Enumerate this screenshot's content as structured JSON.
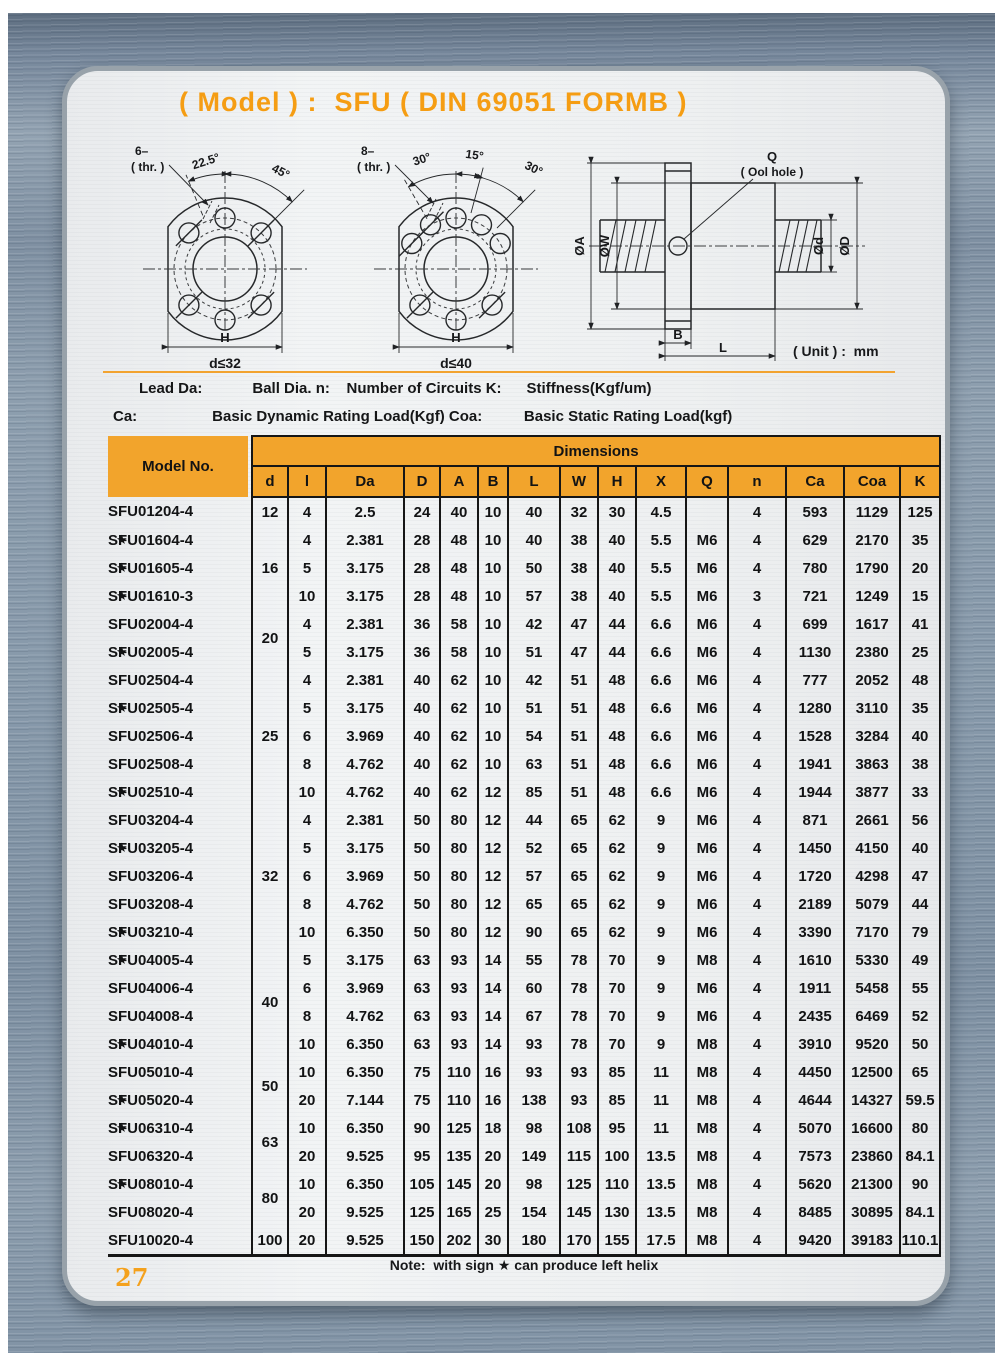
{
  "page": {
    "title": "( Model ) :  SFU ( DIN 69051 FORMB )",
    "unit": "( Unit ) :  mm",
    "note": "Note:  with sign ★ can produce left helix",
    "page_number": "27",
    "star_symbol": "★"
  },
  "colors": {
    "accent_orange": "#F2A42C",
    "title_orange": "#F59D13",
    "table_line": "#161616",
    "metal_background": "#8799AA",
    "card_background": "#EEF0F1"
  },
  "legend": {
    "line1": "Lead Da:            Ball Dia. n:    Number of Circuits K:      Stiffness(Kgf/um)",
    "line2": "Ca:                  Basic Dynamic Rating Load(Kgf) Coa:          Basic Static Rating Load(kgf)"
  },
  "drawings": {
    "flange6": {
      "count": "6–",
      "thr": "( thr. )",
      "angle1": "22.5°",
      "angle2": "45°",
      "h": "H",
      "d": "d≤32"
    },
    "flange8": {
      "count": "8–",
      "thr": "( thr. )",
      "angle1": "30°",
      "angle2": "15°",
      "angle3": "30°",
      "h": "H",
      "d": "d≤40"
    },
    "side": {
      "q": "Q",
      "oil": "( Ool hole )",
      "dia_a": "ØA",
      "dia_w": "ØW",
      "dia_d": "Ød",
      "dia_D": "ØD",
      "b": "B",
      "l": "L"
    }
  },
  "table": {
    "model_header": "Model No.",
    "dimensions_header": "Dimensions",
    "columns": [
      "d",
      "l",
      "Da",
      "D",
      "A",
      "B",
      "L",
      "W",
      "H",
      "X",
      "Q",
      "n",
      "Ca",
      "Coa",
      "K"
    ],
    "d_groups": [
      {
        "d": "12",
        "span": 1
      },
      {
        "d": "16",
        "span": 3
      },
      {
        "d": "20",
        "span": 2
      },
      {
        "d": "25",
        "span": 5
      },
      {
        "d": "32",
        "span": 5
      },
      {
        "d": "40",
        "span": 4
      },
      {
        "d": "50",
        "span": 2
      },
      {
        "d": "63",
        "span": 2
      },
      {
        "d": "80",
        "span": 2
      },
      {
        "d": "100",
        "span": 1
      }
    ],
    "rows": [
      {
        "star": false,
        "model": "SFU01204-4",
        "values": [
          "4",
          "2.5",
          "24",
          "40",
          "10",
          "40",
          "32",
          "30",
          "4.5",
          "",
          "4",
          "593",
          "1129",
          "125"
        ]
      },
      {
        "star": true,
        "model": "SFU01604-4",
        "values": [
          "4",
          "2.381",
          "28",
          "48",
          "10",
          "40",
          "38",
          "40",
          "5.5",
          "M6",
          "4",
          "629",
          "2170",
          "35"
        ]
      },
      {
        "star": true,
        "model": "SFU01605-4",
        "values": [
          "5",
          "3.175",
          "28",
          "48",
          "10",
          "50",
          "38",
          "40",
          "5.5",
          "M6",
          "4",
          "780",
          "1790",
          "20"
        ]
      },
      {
        "star": true,
        "model": "SFU01610-3",
        "values": [
          "10",
          "3.175",
          "28",
          "48",
          "10",
          "57",
          "38",
          "40",
          "5.5",
          "M6",
          "3",
          "721",
          "1249",
          "15"
        ]
      },
      {
        "star": false,
        "model": "SFU02004-4",
        "values": [
          "4",
          "2.381",
          "36",
          "58",
          "10",
          "42",
          "47",
          "44",
          "6.6",
          "M6",
          "4",
          "699",
          "1617",
          "41"
        ]
      },
      {
        "star": true,
        "model": "SFU02005-4",
        "values": [
          "5",
          "3.175",
          "36",
          "58",
          "10",
          "51",
          "47",
          "44",
          "6.6",
          "M6",
          "4",
          "1130",
          "2380",
          "25"
        ]
      },
      {
        "star": false,
        "model": "SFU02504-4",
        "values": [
          "4",
          "2.381",
          "40",
          "62",
          "10",
          "42",
          "51",
          "48",
          "6.6",
          "M6",
          "4",
          "777",
          "2052",
          "48"
        ]
      },
      {
        "star": true,
        "model": "SFU02505-4",
        "values": [
          "5",
          "3.175",
          "40",
          "62",
          "10",
          "51",
          "51",
          "48",
          "6.6",
          "M6",
          "4",
          "1280",
          "3110",
          "35"
        ]
      },
      {
        "star": false,
        "model": "SFU02506-4",
        "values": [
          "6",
          "3.969",
          "40",
          "62",
          "10",
          "54",
          "51",
          "48",
          "6.6",
          "M6",
          "4",
          "1528",
          "3284",
          "40"
        ]
      },
      {
        "star": false,
        "model": "SFU02508-4",
        "values": [
          "8",
          "4.762",
          "40",
          "62",
          "10",
          "63",
          "51",
          "48",
          "6.6",
          "M6",
          "4",
          "1941",
          "3863",
          "38"
        ]
      },
      {
        "star": true,
        "model": "SFU02510-4",
        "values": [
          "10",
          "4.762",
          "40",
          "62",
          "12",
          "85",
          "51",
          "48",
          "6.6",
          "M6",
          "4",
          "1944",
          "3877",
          "33"
        ]
      },
      {
        "star": false,
        "model": "SFU03204-4",
        "values": [
          "4",
          "2.381",
          "50",
          "80",
          "12",
          "44",
          "65",
          "62",
          "9",
          "M6",
          "4",
          "871",
          "2661",
          "56"
        ]
      },
      {
        "star": true,
        "model": "SFU03205-4",
        "values": [
          "5",
          "3.175",
          "50",
          "80",
          "12",
          "52",
          "65",
          "62",
          "9",
          "M6",
          "4",
          "1450",
          "4150",
          "40"
        ]
      },
      {
        "star": false,
        "model": "SFU03206-4",
        "values": [
          "6",
          "3.969",
          "50",
          "80",
          "12",
          "57",
          "65",
          "62",
          "9",
          "M6",
          "4",
          "1720",
          "4298",
          "47"
        ]
      },
      {
        "star": false,
        "model": "SFU03208-4",
        "values": [
          "8",
          "4.762",
          "50",
          "80",
          "12",
          "65",
          "65",
          "62",
          "9",
          "M6",
          "4",
          "2189",
          "5079",
          "44"
        ]
      },
      {
        "star": true,
        "model": "SFU03210-4",
        "values": [
          "10",
          "6.350",
          "50",
          "80",
          "12",
          "90",
          "65",
          "62",
          "9",
          "M6",
          "4",
          "3390",
          "7170",
          "79"
        ]
      },
      {
        "star": true,
        "model": "SFU04005-4",
        "values": [
          "5",
          "3.175",
          "63",
          "93",
          "14",
          "55",
          "78",
          "70",
          "9",
          "M8",
          "4",
          "1610",
          "5330",
          "49"
        ]
      },
      {
        "star": false,
        "model": "SFU04006-4",
        "values": [
          "6",
          "3.969",
          "63",
          "93",
          "14",
          "60",
          "78",
          "70",
          "9",
          "M6",
          "4",
          "1911",
          "5458",
          "55"
        ]
      },
      {
        "star": false,
        "model": "SFU04008-4",
        "values": [
          "8",
          "4.762",
          "63",
          "93",
          "14",
          "67",
          "78",
          "70",
          "9",
          "M6",
          "4",
          "2435",
          "6469",
          "52"
        ]
      },
      {
        "star": true,
        "model": "SFU04010-4",
        "values": [
          "10",
          "6.350",
          "63",
          "93",
          "14",
          "93",
          "78",
          "70",
          "9",
          "M8",
          "4",
          "3910",
          "9520",
          "50"
        ]
      },
      {
        "star": false,
        "model": "SFU05010-4",
        "values": [
          "10",
          "6.350",
          "75",
          "110",
          "16",
          "93",
          "93",
          "85",
          "11",
          "M8",
          "4",
          "4450",
          "12500",
          "65"
        ]
      },
      {
        "star": true,
        "model": "SFU05020-4",
        "values": [
          "20",
          "7.144",
          "75",
          "110",
          "16",
          "138",
          "93",
          "85",
          "11",
          "M8",
          "4",
          "4644",
          "14327",
          "59.5"
        ]
      },
      {
        "star": true,
        "model": "SFU06310-4",
        "values": [
          "10",
          "6.350",
          "90",
          "125",
          "18",
          "98",
          "108",
          "95",
          "11",
          "M8",
          "4",
          "5070",
          "16600",
          "80"
        ]
      },
      {
        "star": false,
        "model": "SFU06320-4",
        "values": [
          "20",
          "9.525",
          "95",
          "135",
          "20",
          "149",
          "115",
          "100",
          "13.5",
          "M8",
          "4",
          "7573",
          "23860",
          "84.1"
        ]
      },
      {
        "star": true,
        "model": "SFU08010-4",
        "values": [
          "10",
          "6.350",
          "105",
          "145",
          "20",
          "98",
          "125",
          "110",
          "13.5",
          "M8",
          "4",
          "5620",
          "21300",
          "90"
        ]
      },
      {
        "star": false,
        "model": "SFU08020-4",
        "values": [
          "20",
          "9.525",
          "125",
          "165",
          "25",
          "154",
          "145",
          "130",
          "13.5",
          "M8",
          "4",
          "8485",
          "30895",
          "84.1"
        ]
      },
      {
        "star": false,
        "model": "SFU10020-4",
        "values": [
          "20",
          "9.525",
          "150",
          "202",
          "30",
          "180",
          "170",
          "155",
          "17.5",
          "M8",
          "4",
          "9420",
          "39183",
          "110.1"
        ]
      }
    ]
  }
}
